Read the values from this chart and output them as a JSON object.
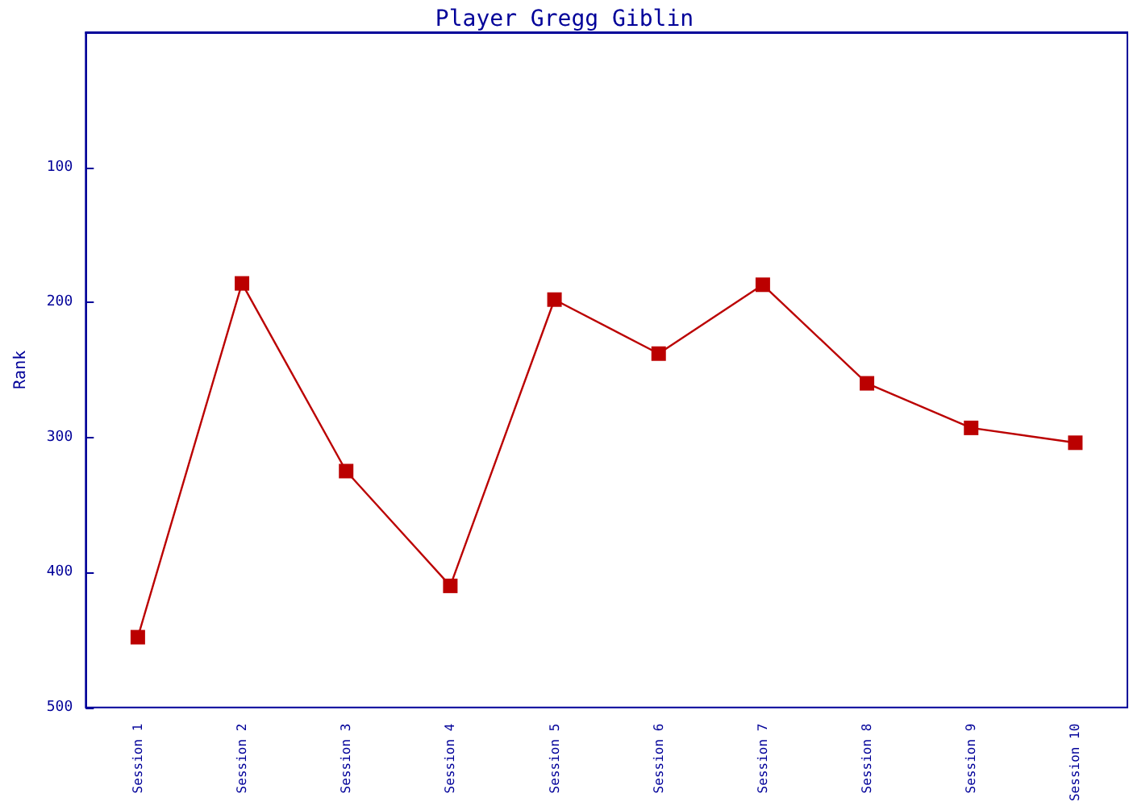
{
  "chart_data": {
    "type": "line",
    "title": "Player Gregg Giblin",
    "ylabel": "Rank",
    "categories": [
      "Session 1",
      "Session 2",
      "Session 3",
      "Session 4",
      "Session 5",
      "Session 6",
      "Session 7",
      "Session 8",
      "Session 9",
      "Session 10"
    ],
    "series": [
      {
        "color": "#bb0000",
        "values": [
          448,
          186,
          325,
          410,
          198,
          238,
          187,
          260,
          293,
          304
        ]
      }
    ],
    "ylim": [
      500,
      0
    ],
    "yticks": [
      100,
      200,
      300,
      400,
      500
    ],
    "grid": false,
    "marker": "square",
    "line_style": "solid"
  }
}
